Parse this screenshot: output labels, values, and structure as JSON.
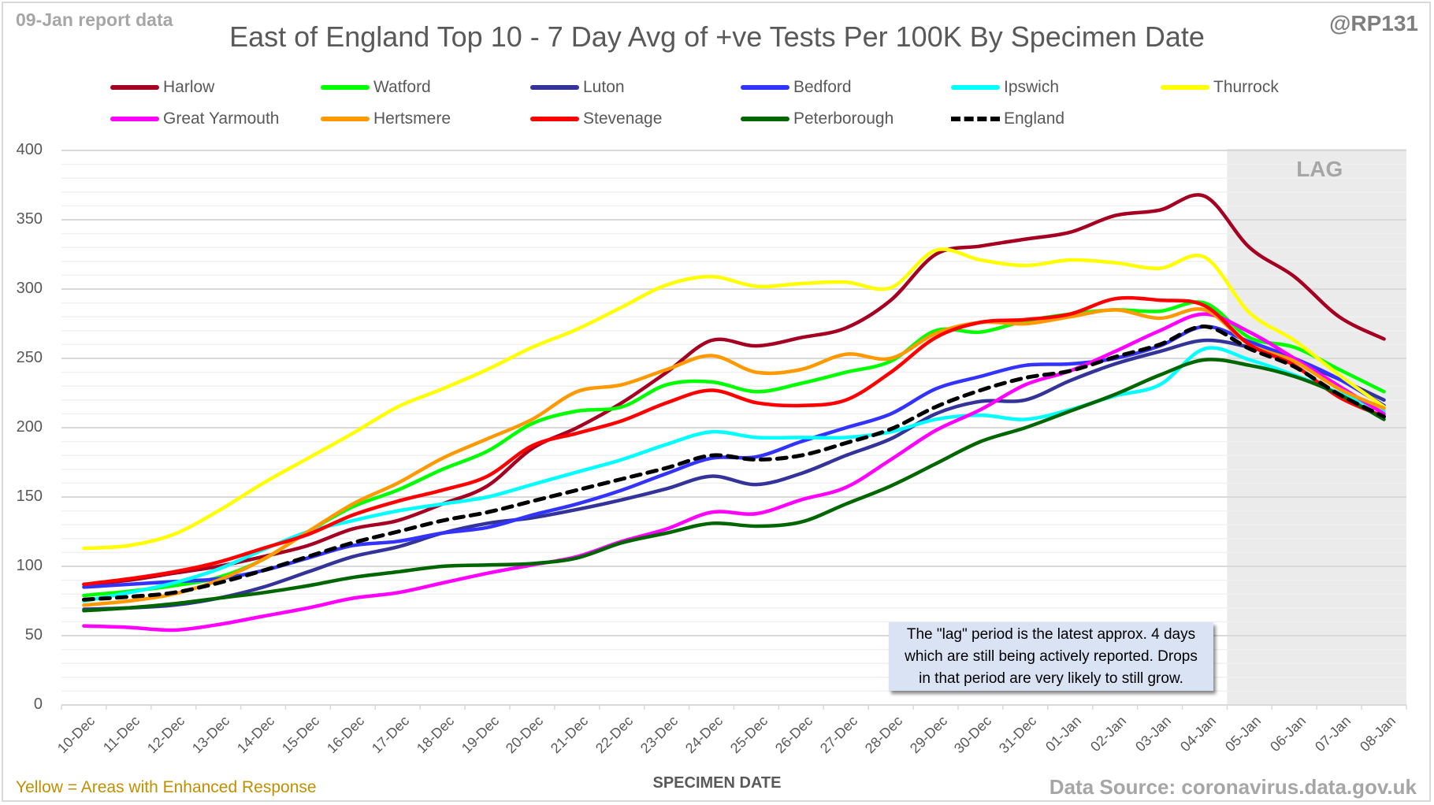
{
  "header": {
    "report_date": "09-Jan report data",
    "handle": "@RP131"
  },
  "footer": {
    "left_note": "Yellow = Areas with Enhanced Response",
    "source": "Data Source: coronavirus.data.gov.uk"
  },
  "annotation": {
    "lag_label": "LAG",
    "lag_note_lines": [
      "The \"lag\" period is the latest approx. 4 days",
      "which are still being actively reported.  Drops",
      "in that period are very likely to still grow."
    ]
  },
  "chart_data": {
    "type": "line",
    "title": "East of England Top 10 - 7 Day Avg of +ve Tests Per 100K By Specimen Date",
    "xlabel": "SPECIMEN DATE",
    "ylabel": "",
    "ylim": [
      0,
      400
    ],
    "yticks": [
      0,
      50,
      100,
      150,
      200,
      250,
      300,
      350,
      400
    ],
    "minor_grid_step": 10,
    "grid": true,
    "legend_position": "top",
    "lag_period_categories": [
      "05-Jan",
      "06-Jan",
      "07-Jan",
      "08-Jan"
    ],
    "categories": [
      "10-Dec",
      "11-Dec",
      "12-Dec",
      "13-Dec",
      "14-Dec",
      "15-Dec",
      "16-Dec",
      "17-Dec",
      "18-Dec",
      "19-Dec",
      "20-Dec",
      "21-Dec",
      "22-Dec",
      "23-Dec",
      "24-Dec",
      "25-Dec",
      "26-Dec",
      "27-Dec",
      "28-Dec",
      "29-Dec",
      "30-Dec",
      "31-Dec",
      "01-Jan",
      "02-Jan",
      "03-Jan",
      "04-Jan",
      "05-Jan",
      "06-Jan",
      "07-Jan",
      "08-Jan"
    ],
    "series": [
      {
        "name": "Harlow",
        "color": "#a50021",
        "dashed": false,
        "values": [
          87,
          90,
          95,
          100,
          107,
          115,
          127,
          133,
          145,
          158,
          185,
          200,
          218,
          240,
          263,
          259,
          265,
          272,
          292,
          325,
          331,
          336,
          341,
          353,
          357,
          367,
          330,
          309,
          280,
          264
        ]
      },
      {
        "name": "Watford",
        "color": "#00ff00",
        "dashed": false,
        "values": [
          79,
          82,
          86,
          92,
          105,
          125,
          143,
          155,
          170,
          183,
          203,
          212,
          215,
          231,
          233,
          226,
          232,
          240,
          248,
          270,
          269,
          277,
          282,
          285,
          284,
          290,
          265,
          258,
          242,
          226
        ]
      },
      {
        "name": "Luton",
        "color": "#333399",
        "dashed": false,
        "values": [
          69,
          70,
          72,
          77,
          85,
          96,
          107,
          114,
          124,
          131,
          135,
          141,
          148,
          156,
          165,
          159,
          167,
          180,
          192,
          210,
          219,
          220,
          234,
          246,
          255,
          263,
          258,
          248,
          235,
          220
        ]
      },
      {
        "name": "Bedford",
        "color": "#3333ff",
        "dashed": false,
        "values": [
          85,
          87,
          89,
          91,
          97,
          106,
          115,
          118,
          124,
          128,
          137,
          145,
          155,
          167,
          178,
          179,
          190,
          200,
          210,
          228,
          237,
          245,
          246,
          250,
          259,
          273,
          262,
          250,
          235,
          216
        ]
      },
      {
        "name": "Ipswich",
        "color": "#00ffff",
        "dashed": false,
        "values": [
          75,
          81,
          88,
          98,
          112,
          125,
          133,
          140,
          145,
          150,
          159,
          168,
          177,
          188,
          197,
          193,
          193,
          193,
          197,
          206,
          209,
          206,
          213,
          223,
          231,
          257,
          249,
          238,
          225,
          212
        ]
      },
      {
        "name": "Thurrock",
        "color": "#ffff00",
        "dashed": false,
        "values": [
          113,
          115,
          123,
          140,
          160,
          178,
          196,
          215,
          228,
          242,
          258,
          271,
          287,
          303,
          309,
          302,
          304,
          305,
          301,
          328,
          321,
          317,
          321,
          319,
          315,
          323,
          283,
          263,
          238,
          215
        ]
      },
      {
        "name": "Great Yarmouth",
        "color": "#ff00ff",
        "dashed": false,
        "values": [
          57,
          56,
          54,
          58,
          64,
          70,
          77,
          81,
          88,
          95,
          101,
          107,
          118,
          127,
          139,
          138,
          148,
          157,
          177,
          198,
          213,
          231,
          241,
          255,
          270,
          282,
          269,
          250,
          230,
          210
        ]
      },
      {
        "name": "Hertsmere",
        "color": "#ff9900",
        "dashed": false,
        "values": [
          72,
          75,
          80,
          90,
          105,
          125,
          145,
          160,
          178,
          192,
          206,
          226,
          231,
          242,
          252,
          240,
          242,
          253,
          250,
          268,
          276,
          275,
          280,
          285,
          279,
          285,
          260,
          248,
          228,
          214
        ]
      },
      {
        "name": "Stevenage",
        "color": "#ff0000",
        "dashed": false,
        "values": [
          87,
          91,
          96,
          103,
          113,
          123,
          137,
          147,
          155,
          165,
          187,
          196,
          205,
          218,
          227,
          218,
          216,
          220,
          240,
          265,
          276,
          278,
          282,
          293,
          292,
          288,
          260,
          245,
          222,
          208
        ]
      },
      {
        "name": "Peterborough",
        "color": "#006600",
        "dashed": false,
        "values": [
          68,
          70,
          73,
          77,
          81,
          86,
          92,
          96,
          100,
          101,
          102,
          106,
          117,
          124,
          131,
          129,
          132,
          145,
          158,
          174,
          190,
          200,
          212,
          224,
          238,
          249,
          245,
          237,
          224,
          206
        ]
      },
      {
        "name": "England",
        "color": "#000000",
        "dashed": true,
        "values": [
          76,
          78,
          81,
          88,
          97,
          107,
          117,
          125,
          133,
          139,
          147,
          155,
          163,
          171,
          180,
          177,
          180,
          189,
          199,
          215,
          227,
          236,
          241,
          251,
          260,
          273,
          257,
          244,
          224,
          208
        ]
      }
    ]
  }
}
